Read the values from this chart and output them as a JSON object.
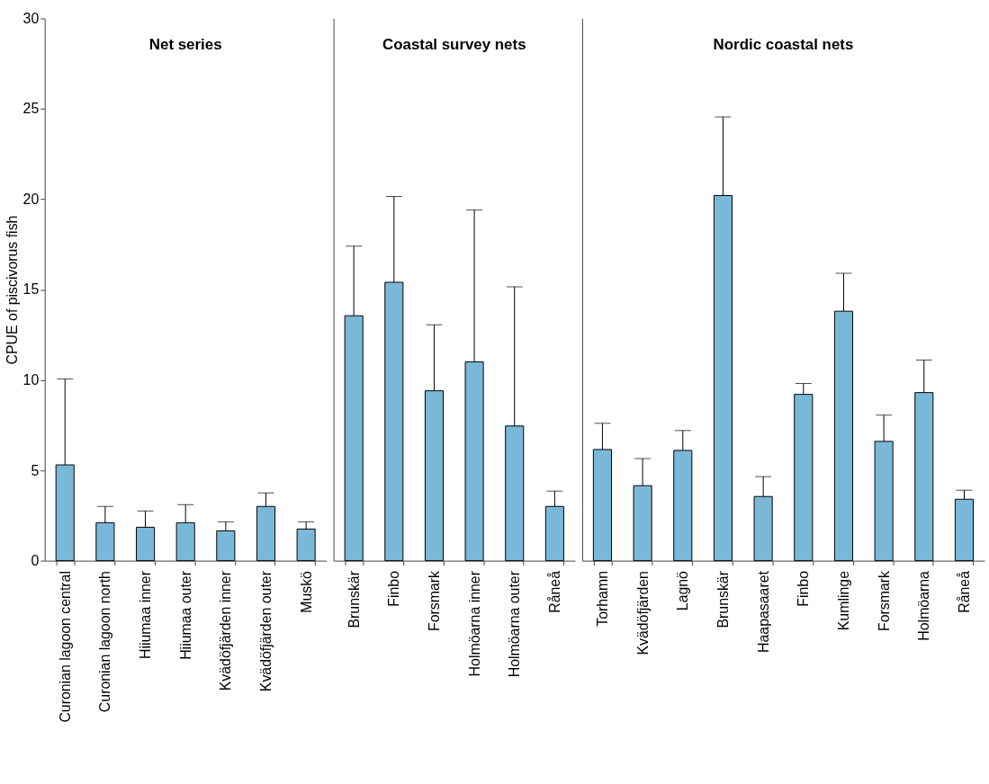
{
  "chart_data": [
    {
      "type": "bar",
      "ylabel": "CPUE of piscivorus fish",
      "annotations": [
        "Net series"
      ],
      "categories": [
        "Curonian lagoon central",
        "Curonian lagoon north",
        "Hiiumaa inner",
        "Hiiumaa outer",
        "Kvädöfjärden inner",
        "Kvädöfjärden outer",
        "Muskö"
      ],
      "values": [
        5.3,
        2.1,
        1.85,
        2.1,
        1.65,
        3.0,
        1.75
      ],
      "errors": [
        [
          5.3,
          10.05
        ],
        [
          2.1,
          3.0
        ],
        [
          1.85,
          2.75
        ],
        [
          2.1,
          3.1
        ],
        [
          1.65,
          2.15
        ],
        [
          3.0,
          3.75
        ],
        [
          1.75,
          2.15
        ]
      ],
      "color": "#7ab8d9",
      "ylim": [
        0,
        30
      ],
      "yticks": [
        0,
        5,
        10,
        15,
        20,
        25,
        30
      ],
      "grid": false
    },
    {
      "type": "bar",
      "annotations": [
        "Coastal survey nets"
      ],
      "categories": [
        "Brunskär",
        "Finbo",
        "Forsmark",
        "Holmöarna inner",
        "Holmöarna outer",
        "Råneå"
      ],
      "values": [
        13.55,
        15.4,
        9.4,
        11.0,
        7.45,
        3.0
      ],
      "errors": [
        [
          13.55,
          17.4
        ],
        [
          15.4,
          20.15
        ],
        [
          9.4,
          13.05
        ],
        [
          11.0,
          19.4
        ],
        [
          7.45,
          15.15
        ],
        [
          3.0,
          3.85
        ]
      ],
      "color": "#7ab8d9",
      "ylim": [
        0,
        30
      ],
      "tick_labels": "x",
      "grid": false
    },
    {
      "type": "bar",
      "annotations": [
        "Nordic coastal nets"
      ],
      "categories": [
        "Torhamn",
        "Kvädöfjärden",
        "Lagnö",
        "Brunskär",
        "Haapasaaret",
        "Finbo",
        "Kumlinge",
        "Forsmark",
        "Holmöarna",
        "Råneå"
      ],
      "values": [
        6.15,
        4.15,
        6.1,
        20.2,
        3.55,
        9.2,
        13.8,
        6.6,
        9.3,
        3.4
      ],
      "errors": [
        [
          6.15,
          7.6
        ],
        [
          4.15,
          5.65
        ],
        [
          6.1,
          7.2
        ],
        [
          20.2,
          24.55
        ],
        [
          3.55,
          4.65
        ],
        [
          9.2,
          9.8
        ],
        [
          13.8,
          15.9
        ],
        [
          6.6,
          8.05
        ],
        [
          9.3,
          11.1
        ],
        [
          3.4,
          3.9
        ]
      ],
      "color": "#7ab8d9",
      "ylim": [
        0,
        30
      ],
      "tick_labels": "x",
      "grid": false
    }
  ]
}
